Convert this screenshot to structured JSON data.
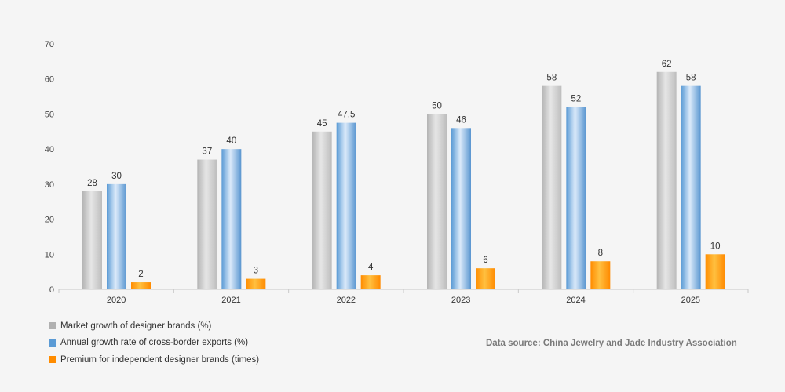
{
  "chart_data": {
    "type": "bar",
    "categories": [
      "2020",
      "2021",
      "2022",
      "2023",
      "2024",
      "2025"
    ],
    "series": [
      {
        "name": "Market growth of designer brands (%)",
        "values": [
          28,
          37,
          45,
          50,
          58,
          62
        ],
        "color": "#b8b8b8"
      },
      {
        "name": "Annual growth rate of cross-border exports (%)",
        "values": [
          30,
          40,
          47.5,
          46,
          52,
          58
        ],
        "color": "#5b9bd5"
      },
      {
        "name": "Premium for independent designer brands (times)",
        "values": [
          2,
          3,
          4,
          6,
          8,
          10
        ],
        "color": "#ff8c00"
      }
    ],
    "ylim": [
      0,
      70
    ],
    "yticks": [
      0,
      10,
      20,
      30,
      40,
      50,
      60,
      70
    ],
    "grid": false,
    "legend_position": "bottom-left",
    "data_labels": true
  },
  "source_note": "Data source: China Jewelry and Jade Industry Association"
}
